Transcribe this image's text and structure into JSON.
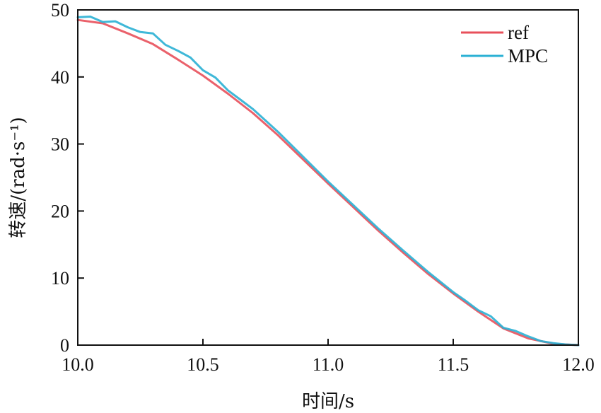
{
  "chart_data": {
    "type": "line",
    "title": "",
    "xlabel": "时间/s",
    "ylabel": "转速/(rad·s⁻¹)",
    "xlim": [
      10.0,
      12.0
    ],
    "ylim": [
      0,
      50
    ],
    "xticks": [
      10.0,
      10.5,
      11.0,
      11.5,
      12.0
    ],
    "xtick_labels": [
      "10.0",
      "10.5",
      "11.0",
      "11.5",
      "12.0"
    ],
    "yticks": [
      0,
      10,
      20,
      30,
      40,
      50
    ],
    "ytick_labels": [
      "0",
      "10",
      "20",
      "30",
      "40",
      "50"
    ],
    "grid": false,
    "legend_position": "top-right",
    "series": [
      {
        "name": "ref",
        "color": "#e8505b",
        "x": [
          10.0,
          10.1,
          10.2,
          10.3,
          10.4,
          10.5,
          10.6,
          10.7,
          10.8,
          10.9,
          11.0,
          11.1,
          11.2,
          11.3,
          11.4,
          11.5,
          11.6,
          11.7,
          11.8,
          11.9,
          12.0
        ],
        "y": [
          48.5,
          48.0,
          46.5,
          44.9,
          42.6,
          40.2,
          37.5,
          34.6,
          31.3,
          27.7,
          24.1,
          20.6,
          17.1,
          13.8,
          10.6,
          7.7,
          5.0,
          2.5,
          1.0,
          0.2,
          0.0
        ]
      },
      {
        "name": "MPC",
        "color": "#2ab0d4",
        "x": [
          10.0,
          10.05,
          10.1,
          10.15,
          10.2,
          10.25,
          10.3,
          10.35,
          10.4,
          10.45,
          10.5,
          10.55,
          10.6,
          10.65,
          10.7,
          10.8,
          10.9,
          11.0,
          11.1,
          11.2,
          11.3,
          11.4,
          11.5,
          11.55,
          11.6,
          11.65,
          11.7,
          11.75,
          11.8,
          11.85,
          11.9,
          11.95,
          12.0
        ],
        "y": [
          48.9,
          49.0,
          48.2,
          48.3,
          47.4,
          46.7,
          46.5,
          44.8,
          43.9,
          42.9,
          41.0,
          39.9,
          38.0,
          36.6,
          35.2,
          31.8,
          28.1,
          24.4,
          20.9,
          17.4,
          14.1,
          10.9,
          7.9,
          6.6,
          5.2,
          4.3,
          2.6,
          2.1,
          1.3,
          0.6,
          0.3,
          0.1,
          0.0
        ]
      }
    ]
  }
}
